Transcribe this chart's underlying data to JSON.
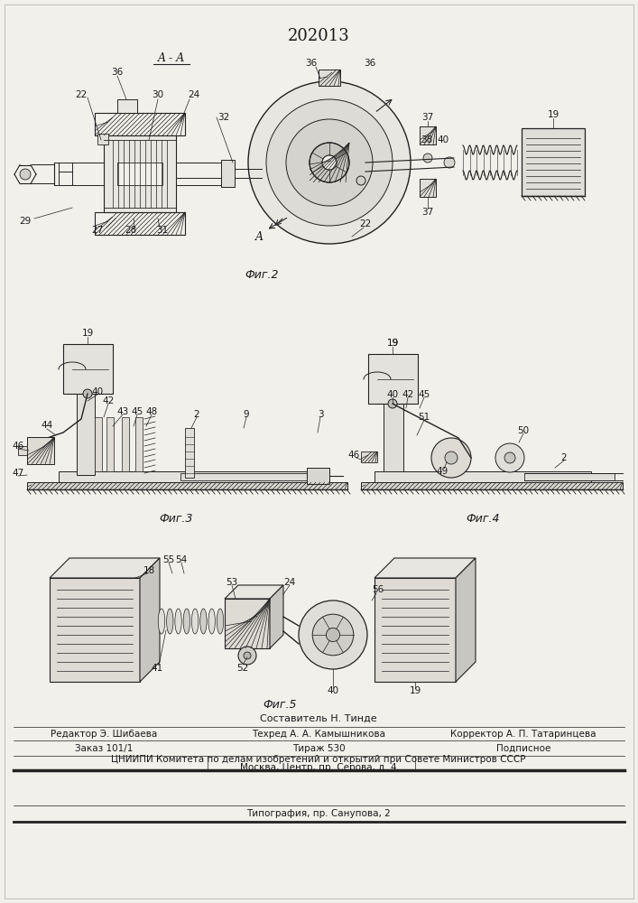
{
  "patent_number": "202013",
  "page_color": "#f2f0eb",
  "text_color": "#1a1a1a",
  "line_color": "#222222",
  "fig2_caption": "Фиг.2",
  "fig3_caption": "Фиг.3",
  "fig4_caption": "Фиг.4",
  "fig5_caption": "Фиг.5",
  "footer_sestavitel": "Составитель Н. Тинде",
  "footer_redaktor": "Редактор Э. Шибаева",
  "footer_tehred": "Техред А. А. Камышникова",
  "footer_korrektor": "Корректор А. П. Татаринцева",
  "footer_zakaz": "Заказ 101/1",
  "footer_tirazh": "Тираж 530",
  "footer_podpisnoe": "Подписное",
  "footer_cniipи": "ЦНИИПИ Комитета по делам изобретений и открытий при Совете Министров СССР",
  "footer_moskva": "Москва, Центр, пр. Серова, д. 4",
  "footer_tipografia": "Типография, пр. Санупова, 2"
}
